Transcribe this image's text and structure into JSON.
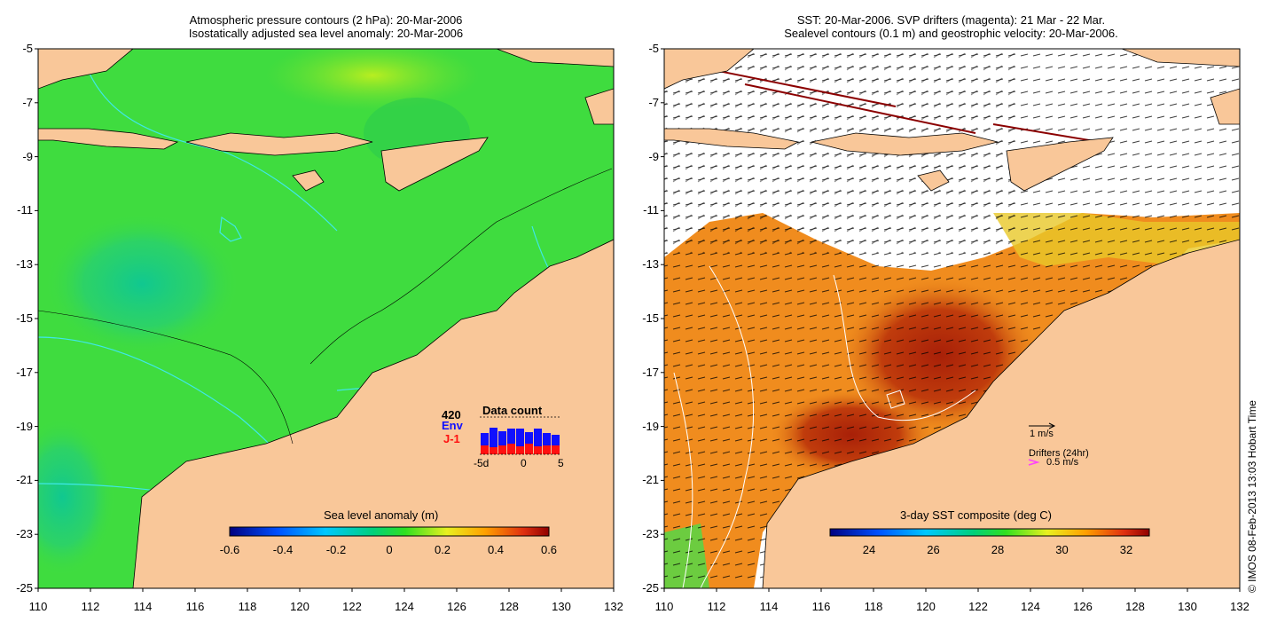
{
  "left_panel": {
    "title_line1": "Atmospheric pressure contours (2 hPa): 20-Mar-2006",
    "title_line2": "Isostatically adjusted sea level anomaly: 20-Mar-2006",
    "colorbar_label": "Sea level anomaly (m)",
    "colorbar_ticks": [
      "-0.6",
      "-0.4",
      "-0.2",
      "0",
      "0.2",
      "0.4",
      "0.6"
    ],
    "data_count": {
      "title": "Data count",
      "total": "420",
      "series1": "Env",
      "series2": "J-1",
      "ticks": [
        "-5d",
        "0",
        "5"
      ],
      "series1_color": "#1010ff",
      "series2_color": "#ff1010"
    }
  },
  "right_panel": {
    "title_line1": "SST: 20-Mar-2006. SVP drifters (magenta): 21 Mar - 22 Mar.",
    "title_line2": "Sealevel contours (0.1 m) and geostrophic velocity: 20-Mar-2006.",
    "colorbar_label": "3-day SST composite (deg C)",
    "colorbar_ticks": [
      "24",
      "26",
      "28",
      "30",
      "32"
    ],
    "velocity_scale": "1 m/s",
    "drifters_label": "Drifters (24hr)",
    "drifters_speed": "0.5 m/s",
    "drifter_color": "#ff40ff"
  },
  "y_ticks": [
    "-5",
    "-7",
    "-9",
    "-11",
    "-13",
    "-15",
    "-17",
    "-19",
    "-21",
    "-23",
    "-25"
  ],
  "x_ticks": [
    "110",
    "112",
    "114",
    "116",
    "118",
    "120",
    "122",
    "124",
    "126",
    "128",
    "130",
    "132"
  ],
  "credit": "© IMOS 08-Feb-2013 13:03 Hobart Time",
  "colors": {
    "land": "#f9c799",
    "ocean_green": "#3fdc3f",
    "sst_orange": "#f08c1e",
    "sst_red": "#b02a08"
  }
}
